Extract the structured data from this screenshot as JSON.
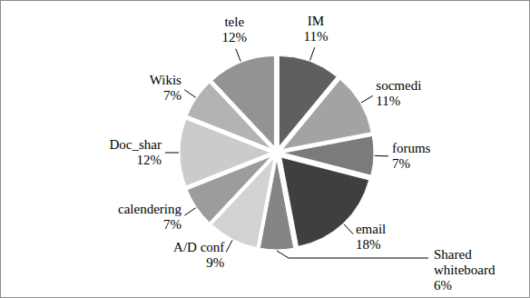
{
  "chart_data": {
    "type": "pie",
    "categories": [
      "IM",
      "socmedi",
      "forums",
      "email",
      "Shared whiteboard",
      "A/D conf",
      "calendering",
      "Doc_shar",
      "Wikis",
      "tele"
    ],
    "values": [
      11,
      11,
      7,
      18,
      6,
      9,
      7,
      12,
      7,
      12
    ],
    "value_labels": [
      "11%",
      "11%",
      "7%",
      "18%",
      "6%",
      "9%",
      "7%",
      "12%",
      "7%",
      "12%"
    ],
    "colors": [
      "#5f5f5f",
      "#a3a3a3",
      "#7b7b7b",
      "#3f3f3f",
      "#858585",
      "#d2d2d2",
      "#9c9c9c",
      "#cbcbcb",
      "#b3b3b3",
      "#939393"
    ],
    "data_labels": true
  }
}
